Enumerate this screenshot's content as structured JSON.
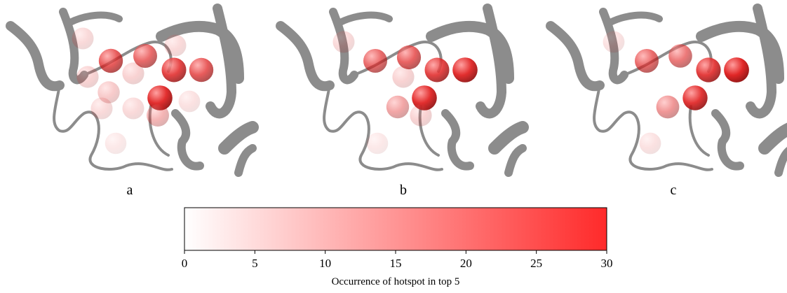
{
  "panels": [
    {
      "label": "a",
      "hotspots": [
        22,
        20,
        25,
        22,
        28,
        5,
        5,
        6,
        7,
        6,
        5,
        5,
        10,
        4,
        3
      ]
    },
    {
      "label": "b",
      "hotspots": [
        20,
        21,
        25,
        28,
        28,
        5,
        6,
        12,
        6,
        3
      ]
    },
    {
      "label": "c",
      "hotspots": [
        20,
        18,
        26,
        29,
        27,
        4,
        14,
        4
      ]
    }
  ],
  "colorbar": {
    "label": "Occurrence of hotspot in top 5",
    "lim": [
      0,
      30
    ],
    "ticks": [
      0,
      5,
      10,
      15,
      20,
      25,
      30
    ],
    "colors": [
      "#ffffff",
      "#ff2a2a"
    ]
  }
}
